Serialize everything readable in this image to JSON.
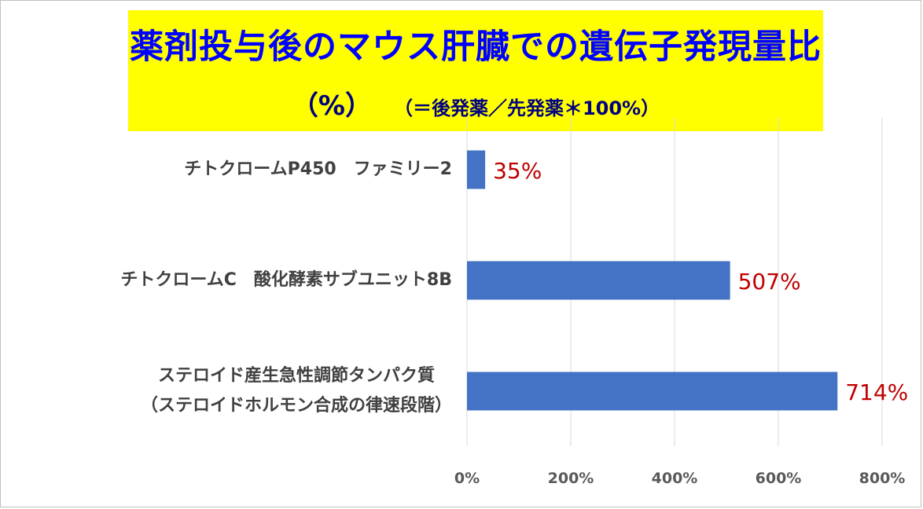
{
  "title": {
    "line1": "薬剤投与後のマウス肝臓での遺伝子発現量比",
    "line2_main": "（%）",
    "line2_sub": "（＝後発薬／先発薬＊100%）"
  },
  "colors": {
    "title_background": "#ffff00",
    "title_text": "#0000ff",
    "bar": "#4472c4",
    "data_label": "#c00000",
    "gridline": "#d9d9d9"
  },
  "chart_data": {
    "type": "bar",
    "orientation": "horizontal",
    "categories": [
      "チトクロームP450　ファミリー2",
      "チトクロームC　酸化酵素サブユニット8B",
      "ステロイド産生急性調節タンパク質（ステロイドホルモン合成の律速段階）"
    ],
    "category_display_lines": [
      [
        "チトクロームP450　ファミリー2"
      ],
      [
        "チトクロームC　酸化酵素サブユニット8B"
      ],
      [
        "ステロイド産生急性調節タンパク質",
        "（ステロイドホルモン合成の律速段階）"
      ]
    ],
    "values": [
      35,
      507,
      714
    ],
    "data_labels": [
      "35%",
      "507%",
      "714%"
    ],
    "x_ticks": [
      0,
      200,
      400,
      600,
      800
    ],
    "x_tick_labels": [
      "0%",
      "200%",
      "400%",
      "600%",
      "800%"
    ],
    "xlim": [
      0,
      800
    ],
    "grid": true,
    "legend": "none"
  }
}
